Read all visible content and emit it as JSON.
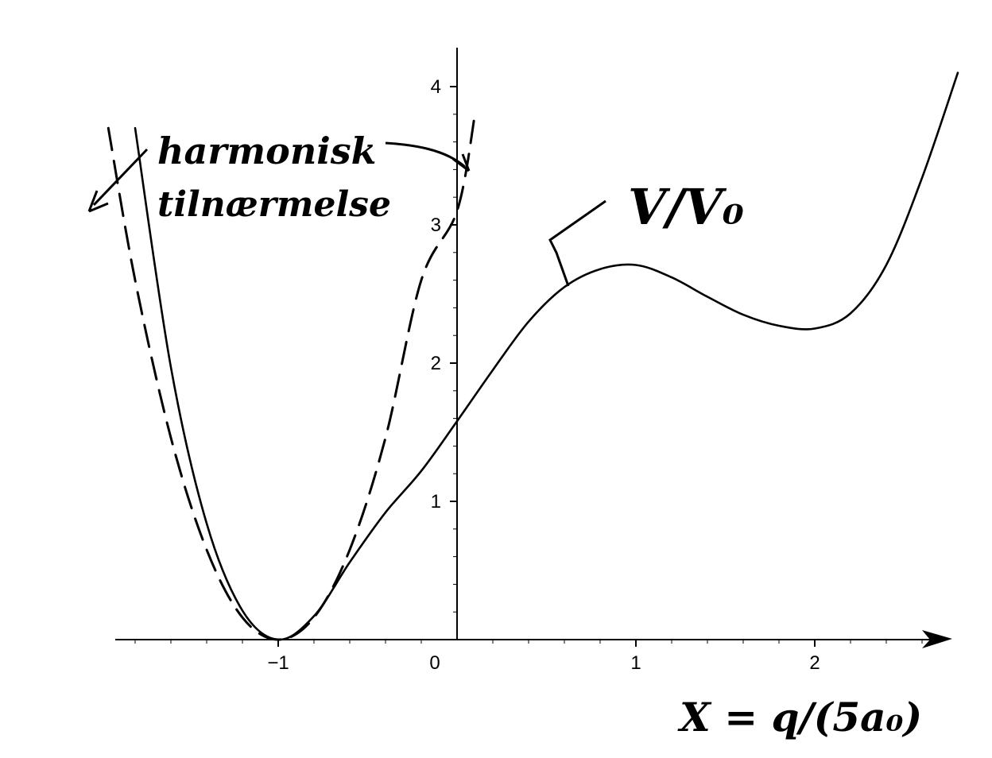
{
  "chart_data": {
    "type": "line",
    "title": "",
    "xlabel": "X = q/(5a₀)",
    "ylabel": "",
    "xlim": [
      -1.95,
      2.85
    ],
    "ylim": [
      0,
      4.25
    ],
    "x_ticks": [
      {
        "value": -1,
        "label": "−1"
      },
      {
        "value": 0,
        "label": "0"
      },
      {
        "value": 1,
        "label": "1"
      },
      {
        "value": 2,
        "label": "2"
      }
    ],
    "y_ticks": [
      {
        "value": 1,
        "label": "1"
      },
      {
        "value": 2,
        "label": "2"
      },
      {
        "value": 3,
        "label": "3"
      },
      {
        "value": 4,
        "label": "4"
      }
    ],
    "grid": false,
    "series": [
      {
        "name": "V/V₀",
        "style": "solid",
        "x": [
          -1.8,
          -1.6,
          -1.4,
          -1.2,
          -1.0,
          -0.8,
          -0.6,
          -0.4,
          -0.2,
          0.0,
          0.2,
          0.4,
          0.6,
          0.8,
          1.0,
          1.2,
          1.4,
          1.6,
          1.8,
          2.0,
          2.2,
          2.4,
          2.6,
          2.8
        ],
        "values": [
          3.7,
          1.97,
          0.84,
          0.21,
          0.0,
          0.17,
          0.56,
          0.92,
          1.22,
          1.58,
          1.95,
          2.3,
          2.55,
          2.68,
          2.71,
          2.62,
          2.48,
          2.35,
          2.27,
          2.25,
          2.36,
          2.71,
          3.34,
          4.1
        ]
      },
      {
        "name": "harmonisk tilnærmelse",
        "style": "dashed",
        "x": [
          -1.95,
          -1.8,
          -1.6,
          -1.4,
          -1.2,
          -1.0,
          -0.8,
          -0.6,
          -0.4,
          -0.2,
          0.0,
          0.1
        ],
        "values": [
          3.7,
          2.6,
          1.46,
          0.65,
          0.16,
          0.0,
          0.16,
          0.65,
          1.46,
          2.6,
          3.1,
          3.8
        ]
      }
    ],
    "annotations": [
      {
        "text": "harmonisk",
        "points_to": "harmonisk tilnærmelse"
      },
      {
        "text": "tilnærmelse",
        "points_to": "harmonisk tilnærmelse"
      },
      {
        "text": "V/V₀",
        "points_to": "V/V₀"
      }
    ]
  }
}
